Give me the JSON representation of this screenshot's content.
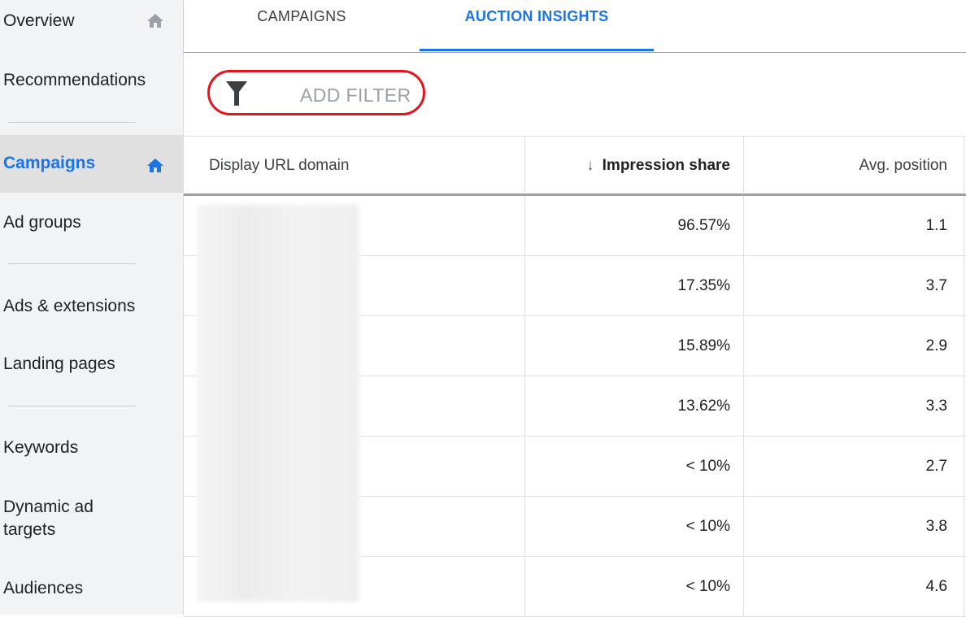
{
  "sidebar": {
    "items": [
      {
        "label": "Overview",
        "icon": "home-icon"
      },
      {
        "label": "Recommendations"
      },
      {
        "label": "Campaigns",
        "icon": "home-icon"
      },
      {
        "label": "Ad groups"
      },
      {
        "label": "Ads & extensions"
      },
      {
        "label": "Landing pages"
      },
      {
        "label": "Keywords"
      },
      {
        "label": "Dynamic ad targets"
      },
      {
        "label": "Audiences"
      }
    ],
    "active_color": "#1a73e8"
  },
  "tabs": [
    {
      "label": "CAMPAIGNS"
    },
    {
      "label": "AUCTION INSIGHTS"
    }
  ],
  "filter": {
    "label": "ADD FILTER",
    "icon": "filter-icon",
    "highlight_color": "#e8121b"
  },
  "table": {
    "columns": {
      "domain": "Display URL domain",
      "share": "Impression share",
      "share_sort_icon": "↓",
      "position": "Avg. position"
    },
    "rows": [
      {
        "share": "96.57%",
        "position": "1.1"
      },
      {
        "share": "17.35%",
        "position": "3.7"
      },
      {
        "share": "15.89%",
        "position": "2.9"
      },
      {
        "share": "13.62%",
        "position": "3.3"
      },
      {
        "share": "< 10%",
        "position": "2.7"
      },
      {
        "share": "< 10%",
        "position": "3.8"
      },
      {
        "share": "< 10%",
        "position": "4.6"
      }
    ]
  }
}
